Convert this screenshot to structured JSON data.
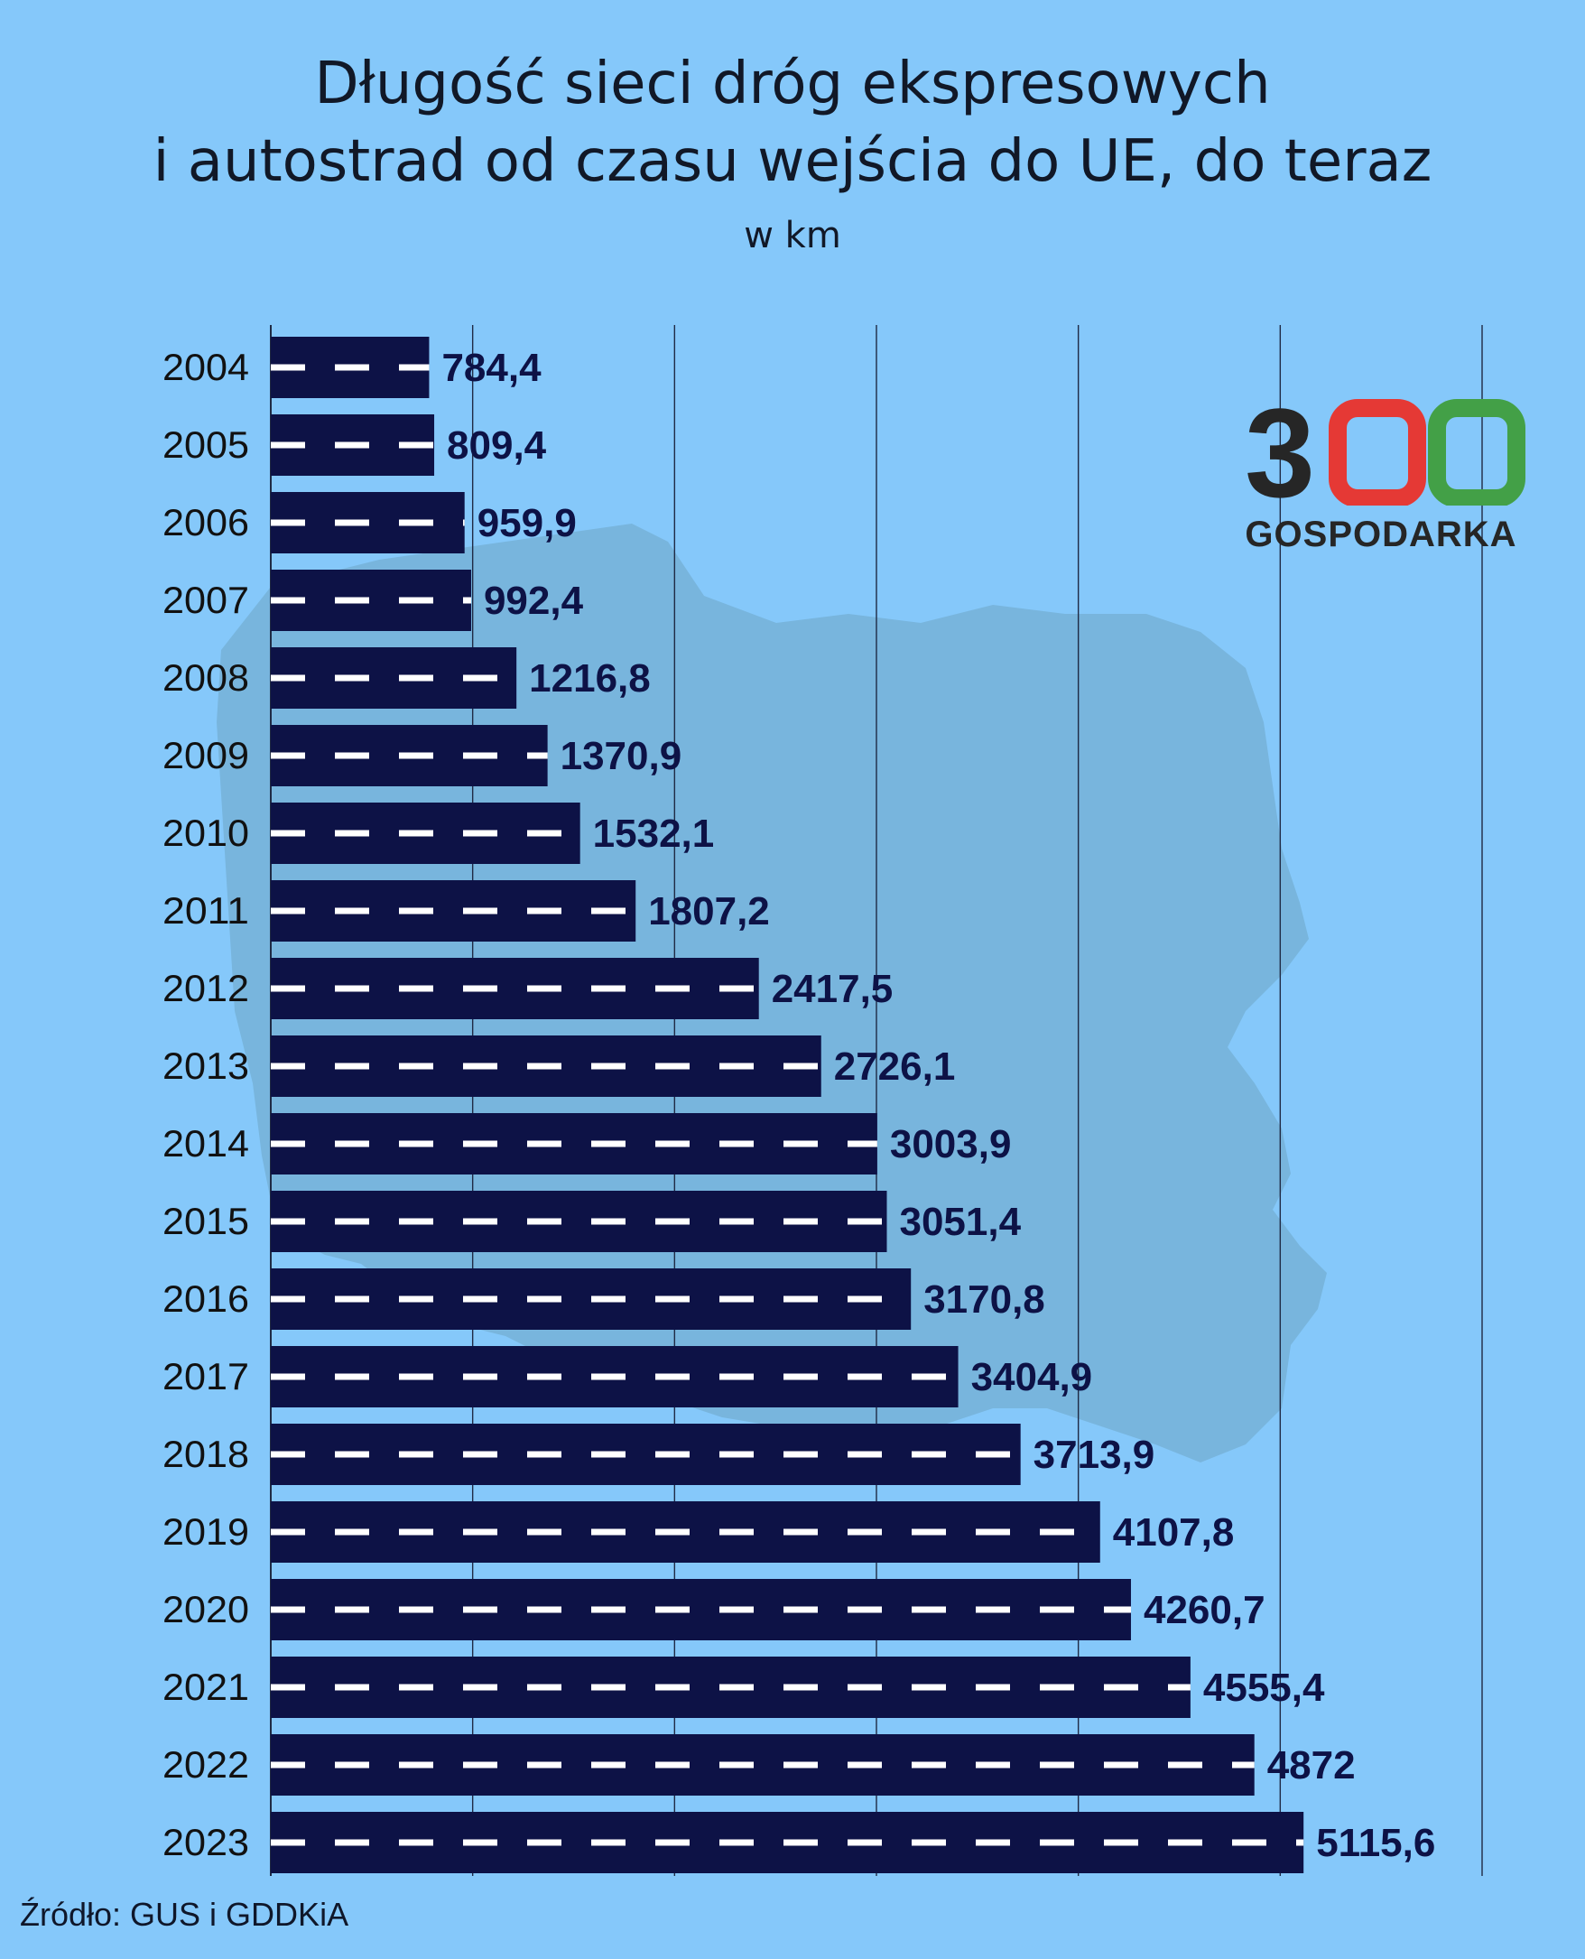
{
  "header": {
    "title_line1": "Długość sieci dróg ekspresowych",
    "title_line2": "i autostrad od czasu wejścia do UE, do teraz",
    "subtitle": "w km"
  },
  "source": "Źródło: GUS i GDDKiA",
  "logo": {
    "digits": [
      "3",
      "0",
      "0"
    ],
    "digit_colors": [
      "#262626",
      "#e53935",
      "#43a047"
    ],
    "word": "GOSPODARKA"
  },
  "colors": {
    "background": "#85c8fa",
    "bar": "#0d1246",
    "dash": "#ffffff",
    "value_label": "#0d1246",
    "gridline": "#1f2a44",
    "map": "#78b5dd"
  },
  "chart_data": {
    "type": "bar",
    "orientation": "horizontal",
    "categories": [
      "2004",
      "2005",
      "2006",
      "2007",
      "2008",
      "2009",
      "2010",
      "2011",
      "2012",
      "2013",
      "2014",
      "2015",
      "2016",
      "2017",
      "2018",
      "2019",
      "2020",
      "2021",
      "2022",
      "2023"
    ],
    "values": [
      784.4,
      809.4,
      959.9,
      992.4,
      1216.8,
      1370.9,
      1532.1,
      1807.2,
      2417.5,
      2726.1,
      3003.9,
      3051.4,
      3170.8,
      3404.9,
      3713.9,
      4107.8,
      4260.7,
      4555.4,
      4872,
      5115.6
    ],
    "value_labels": [
      "784,4",
      "809,4",
      "959,9",
      "992,4",
      "1216,8",
      "1370,9",
      "1532,1",
      "1807,2",
      "2417,5",
      "2726,1",
      "3003,9",
      "3051,4",
      "3170,8",
      "3404,9",
      "3713,9",
      "4107,8",
      "4260,7",
      "4555,4",
      "4872",
      "5115,6"
    ],
    "xlim": [
      0,
      6000
    ],
    "gridlines": [
      0,
      1000,
      2000,
      3000,
      4000,
      5000,
      6000
    ],
    "grid": true,
    "title": "Długość sieci dróg ekspresowych i autostrad od czasu wejścia do UE, do teraz",
    "subtitle": "w km"
  }
}
